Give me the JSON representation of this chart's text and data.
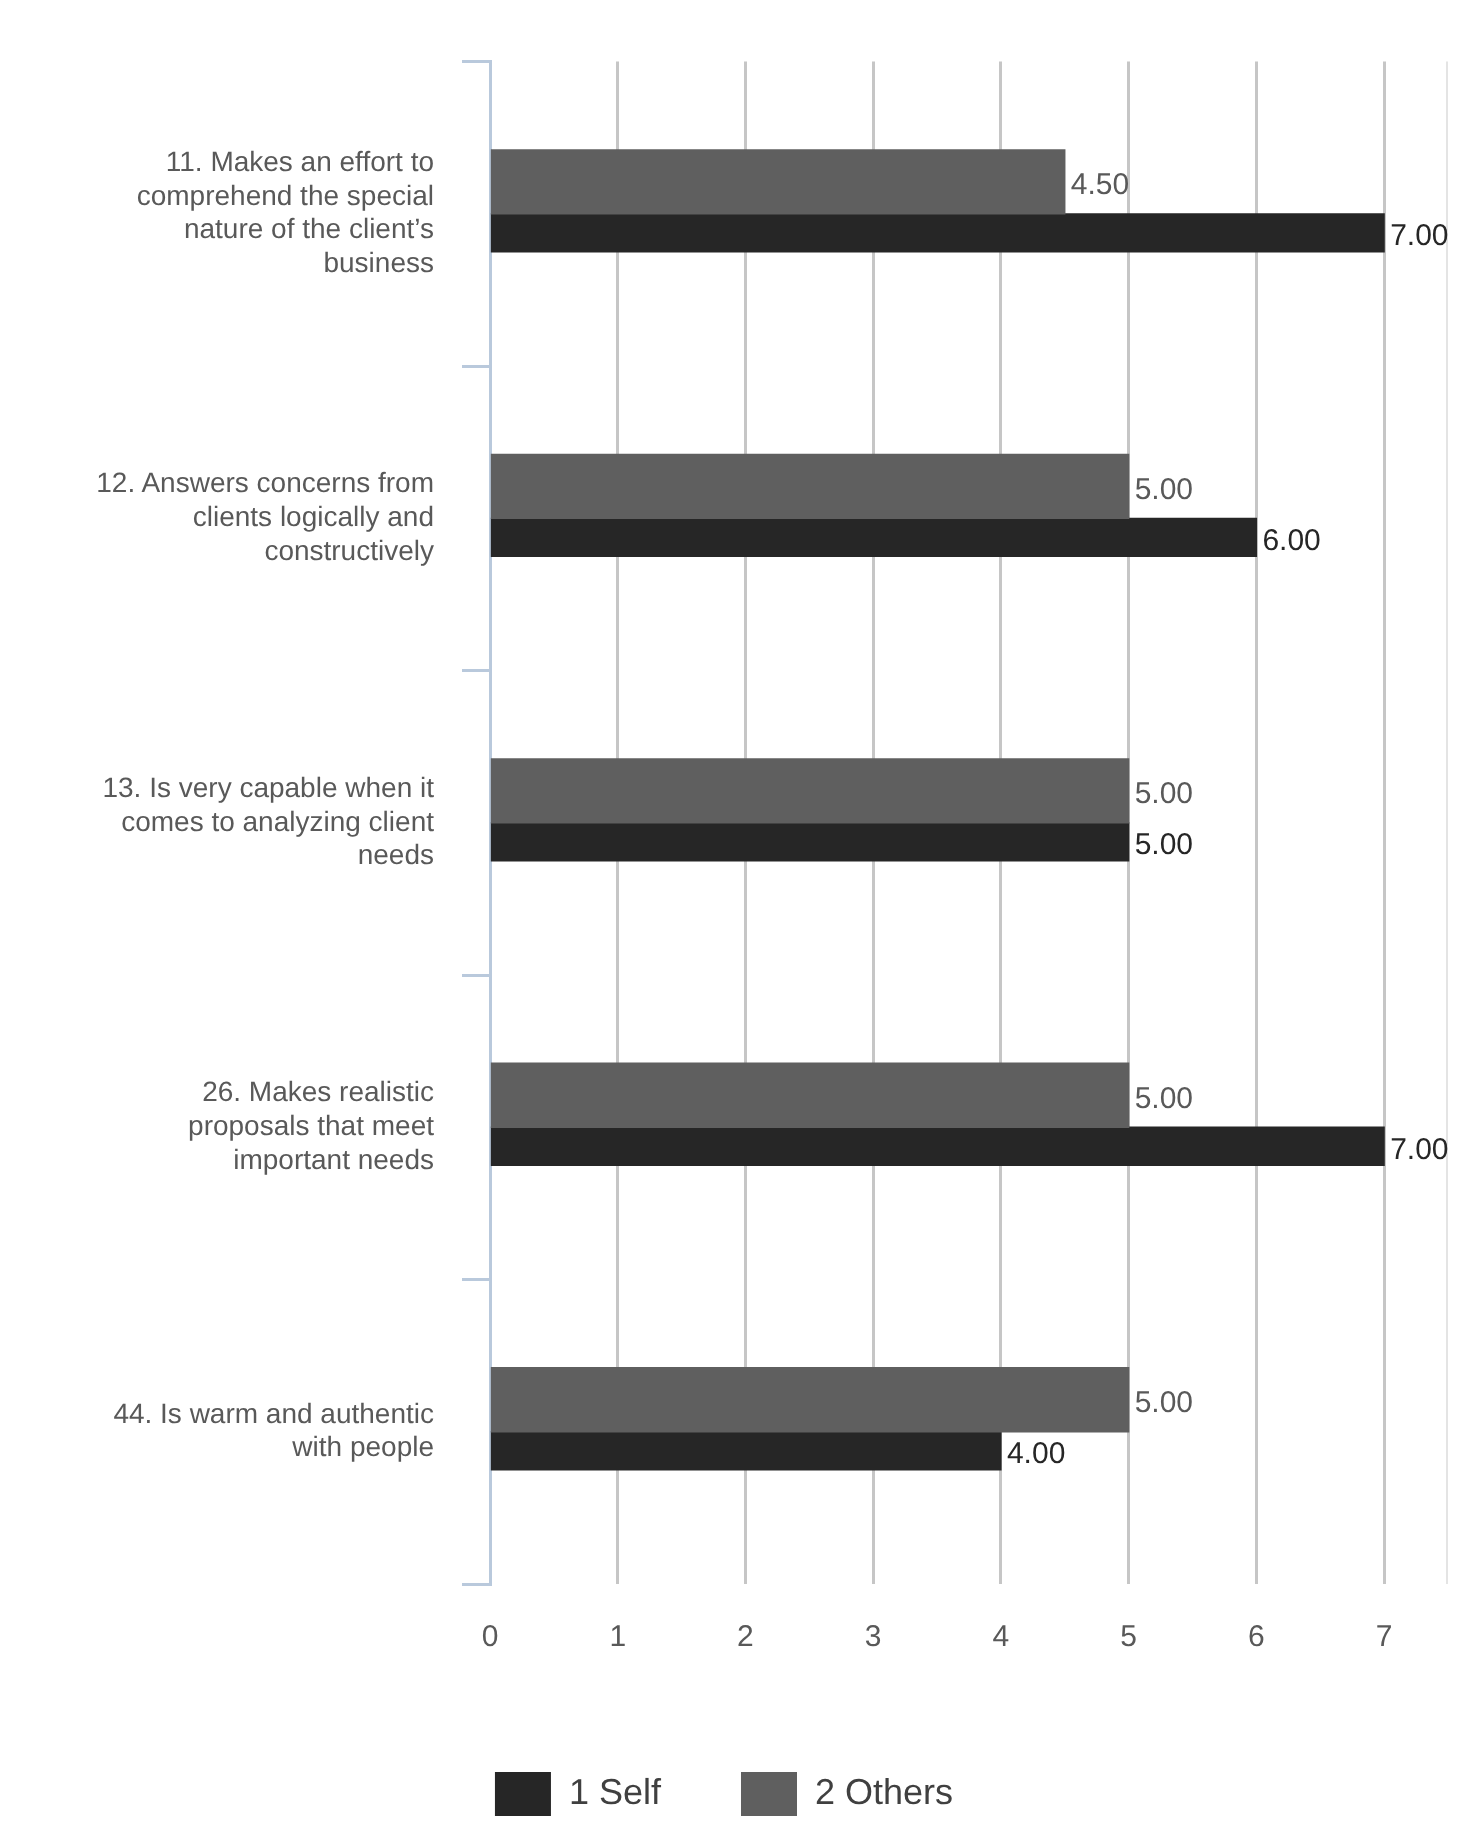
{
  "chart_data": {
    "type": "bar",
    "orientation": "horizontal",
    "categories": [
      "11. Makes an effort to comprehend the special nature of the client’s business",
      "12. Answers concerns from clients logically and constructively",
      "13. Is very capable when it comes to analyzing client needs",
      "26. Makes realistic proposals that meet important needs",
      "44. Is warm and authentic with people"
    ],
    "series": [
      {
        "name": "1 Self",
        "color": "#262626",
        "values": [
          7,
          6,
          5,
          7,
          4
        ],
        "value_labels": [
          "7.00",
          "6.00",
          "5.00",
          "7.00",
          "4.00"
        ]
      },
      {
        "name": "2 Others",
        "color": "#5f5f5f",
        "values": [
          4.5,
          5,
          5,
          5,
          5
        ],
        "value_labels": [
          "4.50",
          "5.00",
          "5.00",
          "5.00",
          "5.00"
        ]
      }
    ],
    "xlim": [
      0,
      7.5
    ],
    "xticks": [
      0,
      1,
      2,
      3,
      4,
      5,
      6,
      7
    ],
    "grid": "x",
    "legend": "bottom"
  }
}
